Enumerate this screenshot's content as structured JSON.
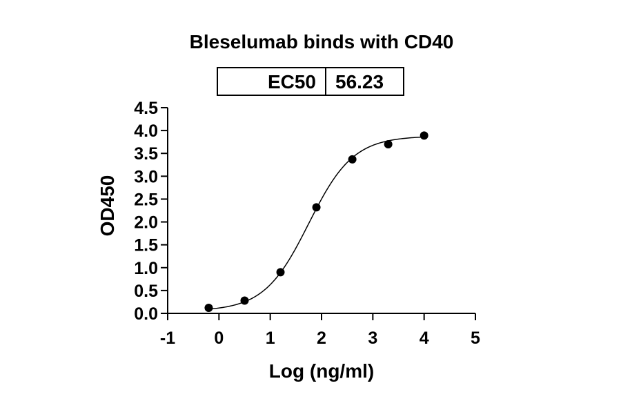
{
  "chart_data": {
    "type": "scatter",
    "title": "Bleselumab binds with CD40",
    "xlabel": "Log (ng/ml)",
    "ylabel": "OD450",
    "xlim": [
      -1,
      5
    ],
    "ylim": [
      0,
      4.5
    ],
    "x_ticks": [
      "-1",
      "0",
      "1",
      "2",
      "3",
      "4",
      "5"
    ],
    "y_ticks": [
      "0.0",
      "0.5",
      "1.0",
      "1.5",
      "2.0",
      "2.5",
      "3.0",
      "3.5",
      "4.0",
      "4.5"
    ],
    "grid": false,
    "series": [
      {
        "x": [
          -0.2,
          0.5,
          1.2,
          1.9,
          2.6,
          3.3,
          4.0
        ],
        "y": [
          0.12,
          0.28,
          0.9,
          2.32,
          3.37,
          3.7,
          3.89
        ]
      }
    ],
    "fit": {
      "model": "4PL",
      "bottom": 0.05,
      "top": 3.88,
      "logEC50": 1.75,
      "hill": 1.0,
      "x_range": [
        -0.2,
        4.0
      ]
    },
    "results_table": {
      "label": "EC50",
      "value": "56.23"
    }
  }
}
